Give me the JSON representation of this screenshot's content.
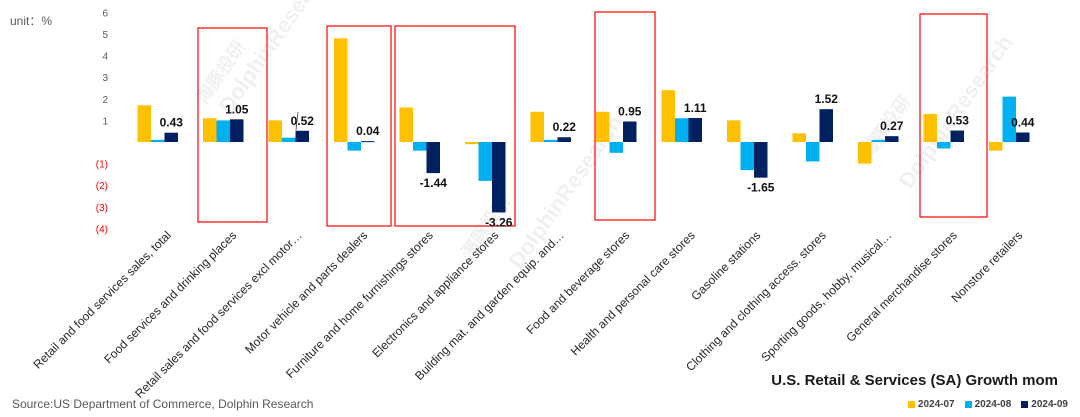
{
  "unit_label": "unit：%",
  "source": "Source:US Department of Commerce, Dolphin Research",
  "watermarks": [
    "海豚投研",
    "DolphinResearch",
    "海豚投研",
    "DolphinResearch",
    "海豚投研",
    "DolphinResearch"
  ],
  "colors": {
    "2024-07": "#FFC000",
    "2024-08": "#00B0F0",
    "2024-09": "#002060",
    "highlight_box": "#FF0000",
    "axis_text": "#595959",
    "negative_tick": "#FF0000"
  },
  "chart_data": {
    "type": "bar",
    "title": "U.S. Retail & Services (SA) Growth mom",
    "ylim": [
      -4,
      6
    ],
    "yticks": [
      "6",
      "5",
      "4",
      "3",
      "2",
      "1",
      "",
      "(1)",
      "(2)",
      "(3)",
      "(4)"
    ],
    "ytick_values": [
      6,
      5,
      4,
      3,
      2,
      1,
      0,
      -1,
      -2,
      -3,
      -4
    ],
    "grid": false,
    "legend_position": "bottom-right",
    "categories": [
      "Retail and food services sales, total",
      "Food services and drinking places",
      "Retail sales and food services excl motor…",
      "Motor vehicle and parts dealers",
      "Furniture and home furnishings stores",
      "Electronics and appliance stores",
      "Building mat. and garden equip. and…",
      "Food and beverage stores",
      "Health and personal care stores",
      "Gasoline stations",
      "Clothing and clothing access. stores",
      "Sporting goods, hobby, musical…",
      "General merchandise stores",
      "Nonstore retailers"
    ],
    "series": [
      {
        "name": "2024-07",
        "values": [
          1.7,
          1.1,
          1.0,
          4.8,
          1.6,
          -0.1,
          1.4,
          1.4,
          2.4,
          1.0,
          0.4,
          -1.0,
          1.3,
          -0.4
        ]
      },
      {
        "name": "2024-08",
        "values": [
          0.1,
          1.0,
          0.2,
          -0.4,
          -0.4,
          -1.8,
          0.1,
          -0.5,
          1.1,
          -1.3,
          -0.9,
          0.1,
          -0.3,
          2.1
        ]
      },
      {
        "name": "2024-09",
        "values": [
          0.43,
          1.05,
          0.52,
          0.04,
          -1.44,
          -3.26,
          0.22,
          0.95,
          1.11,
          -1.65,
          1.52,
          0.27,
          0.53,
          0.44
        ]
      }
    ],
    "data_labels": [
      "0.43",
      "1.05",
      "0.52",
      "0.04",
      "-1.44",
      "-3.26",
      "0.22",
      "0.95",
      "1.11",
      "-1.65",
      "1.52",
      "0.27",
      "0.53",
      "0.44"
    ],
    "highlighted_categories": [
      1,
      3,
      4,
      7,
      12
    ]
  }
}
